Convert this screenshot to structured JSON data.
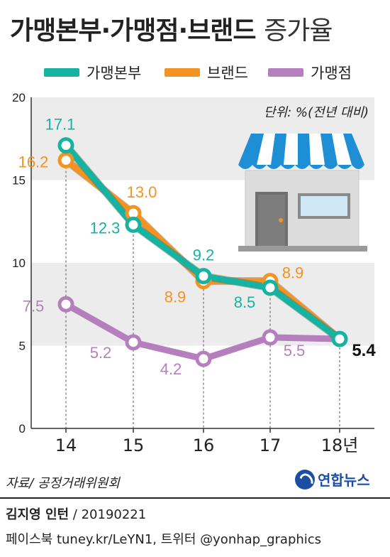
{
  "header": {
    "title_main": "가맹본부·가맹점·브랜드",
    "title_suffix": "증가율"
  },
  "colors": {
    "series_hq": "#16b2a2",
    "series_brand": "#f39324",
    "series_store": "#b57fbe",
    "band": "#ececec",
    "text": "#222222"
  },
  "chart_data": {
    "type": "line",
    "unit_note": "단위: %(전년 대비)",
    "categories": [
      "14",
      "15",
      "16",
      "17",
      "18년"
    ],
    "ylim": [
      0,
      20
    ],
    "yticks": [
      0,
      5,
      10,
      15,
      20
    ],
    "grid": "alternating horizontal bands",
    "legend_position": "top",
    "series": [
      {
        "name": "가맹본부",
        "color": "#16b2a2",
        "values": [
          17.1,
          12.3,
          9.2,
          8.5,
          5.4
        ],
        "labels": [
          "17.1",
          "12.3",
          "9.2",
          "8.5",
          "5.4"
        ]
      },
      {
        "name": "브랜드",
        "color": "#f39324",
        "values": [
          16.2,
          13.0,
          8.9,
          8.9,
          5.4
        ],
        "labels": [
          "16.2",
          "13.0",
          "8.9",
          "8.9",
          ""
        ]
      },
      {
        "name": "가맹점",
        "color": "#b57fbe",
        "values": [
          7.5,
          5.2,
          4.2,
          5.5,
          5.4
        ],
        "labels": [
          "7.5",
          "5.2",
          "4.2",
          "5.5",
          ""
        ]
      }
    ]
  },
  "footer": {
    "source": "자료/ 공정거래위원회",
    "logo_text": "연합뉴스",
    "author_name": "김지영 인턴",
    "author_date": " / 20190221",
    "social": "페이스북 tuney.kr/LeYN1, 트위터 @yonhap_graphics"
  }
}
